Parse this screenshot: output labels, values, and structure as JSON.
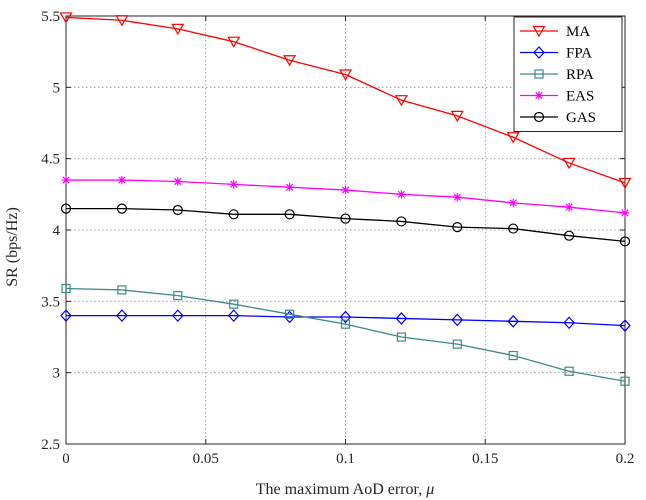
{
  "chart_data": {
    "type": "line",
    "xlabel": "The maximum AoD error, ",
    "xlabel_symbol": "μ",
    "ylabel": "SR (bps/Hz)",
    "xlim": [
      0,
      0.2
    ],
    "ylim": [
      2.5,
      5.5
    ],
    "x_ticks": [
      0,
      0.05,
      0.1,
      0.15,
      0.2
    ],
    "x_tick_labels": [
      "0",
      "0.05",
      "0.1",
      "0.15",
      "0.2"
    ],
    "y_ticks": [
      2.5,
      3,
      3.5,
      4,
      4.5,
      5,
      5.5
    ],
    "y_tick_labels": [
      "2.5",
      "3",
      "3.5",
      "4",
      "4.5",
      "5",
      "5.5"
    ],
    "grid": true,
    "legend_position": "top-right",
    "x": [
      0,
      0.02,
      0.04,
      0.06,
      0.08,
      0.1,
      0.12,
      0.14,
      0.16,
      0.18,
      0.2
    ],
    "series": [
      {
        "name": "MA",
        "color": "#ff0000",
        "marker": "triangle-down",
        "values": [
          5.49,
          5.47,
          5.41,
          5.32,
          5.19,
          5.09,
          4.91,
          4.8,
          4.65,
          4.47,
          4.33
        ]
      },
      {
        "name": "FPA",
        "color": "#0000ff",
        "marker": "diamond",
        "values": [
          3.4,
          3.4,
          3.4,
          3.4,
          3.39,
          3.39,
          3.38,
          3.37,
          3.36,
          3.35,
          3.33
        ]
      },
      {
        "name": "RPA",
        "color": "#3d8a8a",
        "marker": "square",
        "values": [
          3.59,
          3.58,
          3.54,
          3.48,
          3.41,
          3.34,
          3.25,
          3.2,
          3.12,
          3.01,
          2.94
        ]
      },
      {
        "name": "EAS",
        "color": "#ff00ff",
        "marker": "asterisk",
        "values": [
          4.35,
          4.35,
          4.34,
          4.32,
          4.3,
          4.28,
          4.25,
          4.23,
          4.19,
          4.16,
          4.12
        ]
      },
      {
        "name": "GAS",
        "color": "#000000",
        "marker": "circle",
        "values": [
          4.15,
          4.15,
          4.14,
          4.11,
          4.11,
          4.08,
          4.06,
          4.02,
          4.01,
          3.96,
          3.92
        ]
      }
    ]
  }
}
